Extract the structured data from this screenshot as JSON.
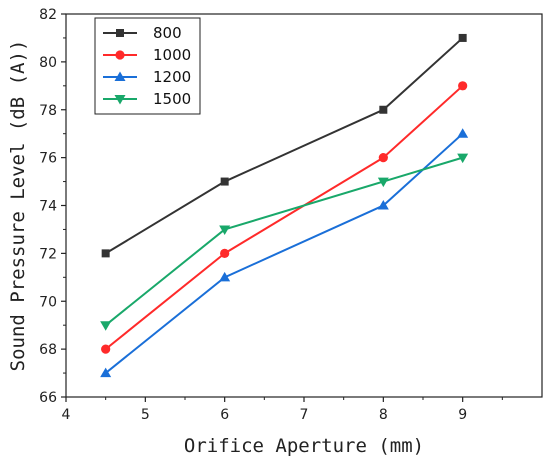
{
  "chart_data": {
    "type": "line",
    "xlabel": "Orifice Aperture (mm)",
    "ylabel": "Sound Pressure Level (dB (A))",
    "xlim": [
      4,
      10
    ],
    "ylim": [
      66,
      82
    ],
    "x_ticks": [
      4,
      5,
      6,
      7,
      8,
      9
    ],
    "y_ticks": [
      66,
      68,
      70,
      72,
      74,
      76,
      78,
      80,
      82
    ],
    "x": [
      4.5,
      6,
      8,
      9
    ],
    "legend_position": "top-left",
    "grid": false,
    "series": [
      {
        "name": "800",
        "values": [
          72,
          75,
          78,
          81
        ],
        "color": "#333333",
        "marker": "square"
      },
      {
        "name": "1000",
        "values": [
          68,
          72,
          76,
          79
        ],
        "color": "#ff2a2a",
        "marker": "circle"
      },
      {
        "name": "1200",
        "values": [
          67,
          71,
          74,
          77
        ],
        "color": "#1a6fd8",
        "marker": "triangle-up"
      },
      {
        "name": "1500",
        "values": [
          69,
          73,
          75,
          76
        ],
        "color": "#19a86a",
        "marker": "triangle-down"
      }
    ]
  }
}
